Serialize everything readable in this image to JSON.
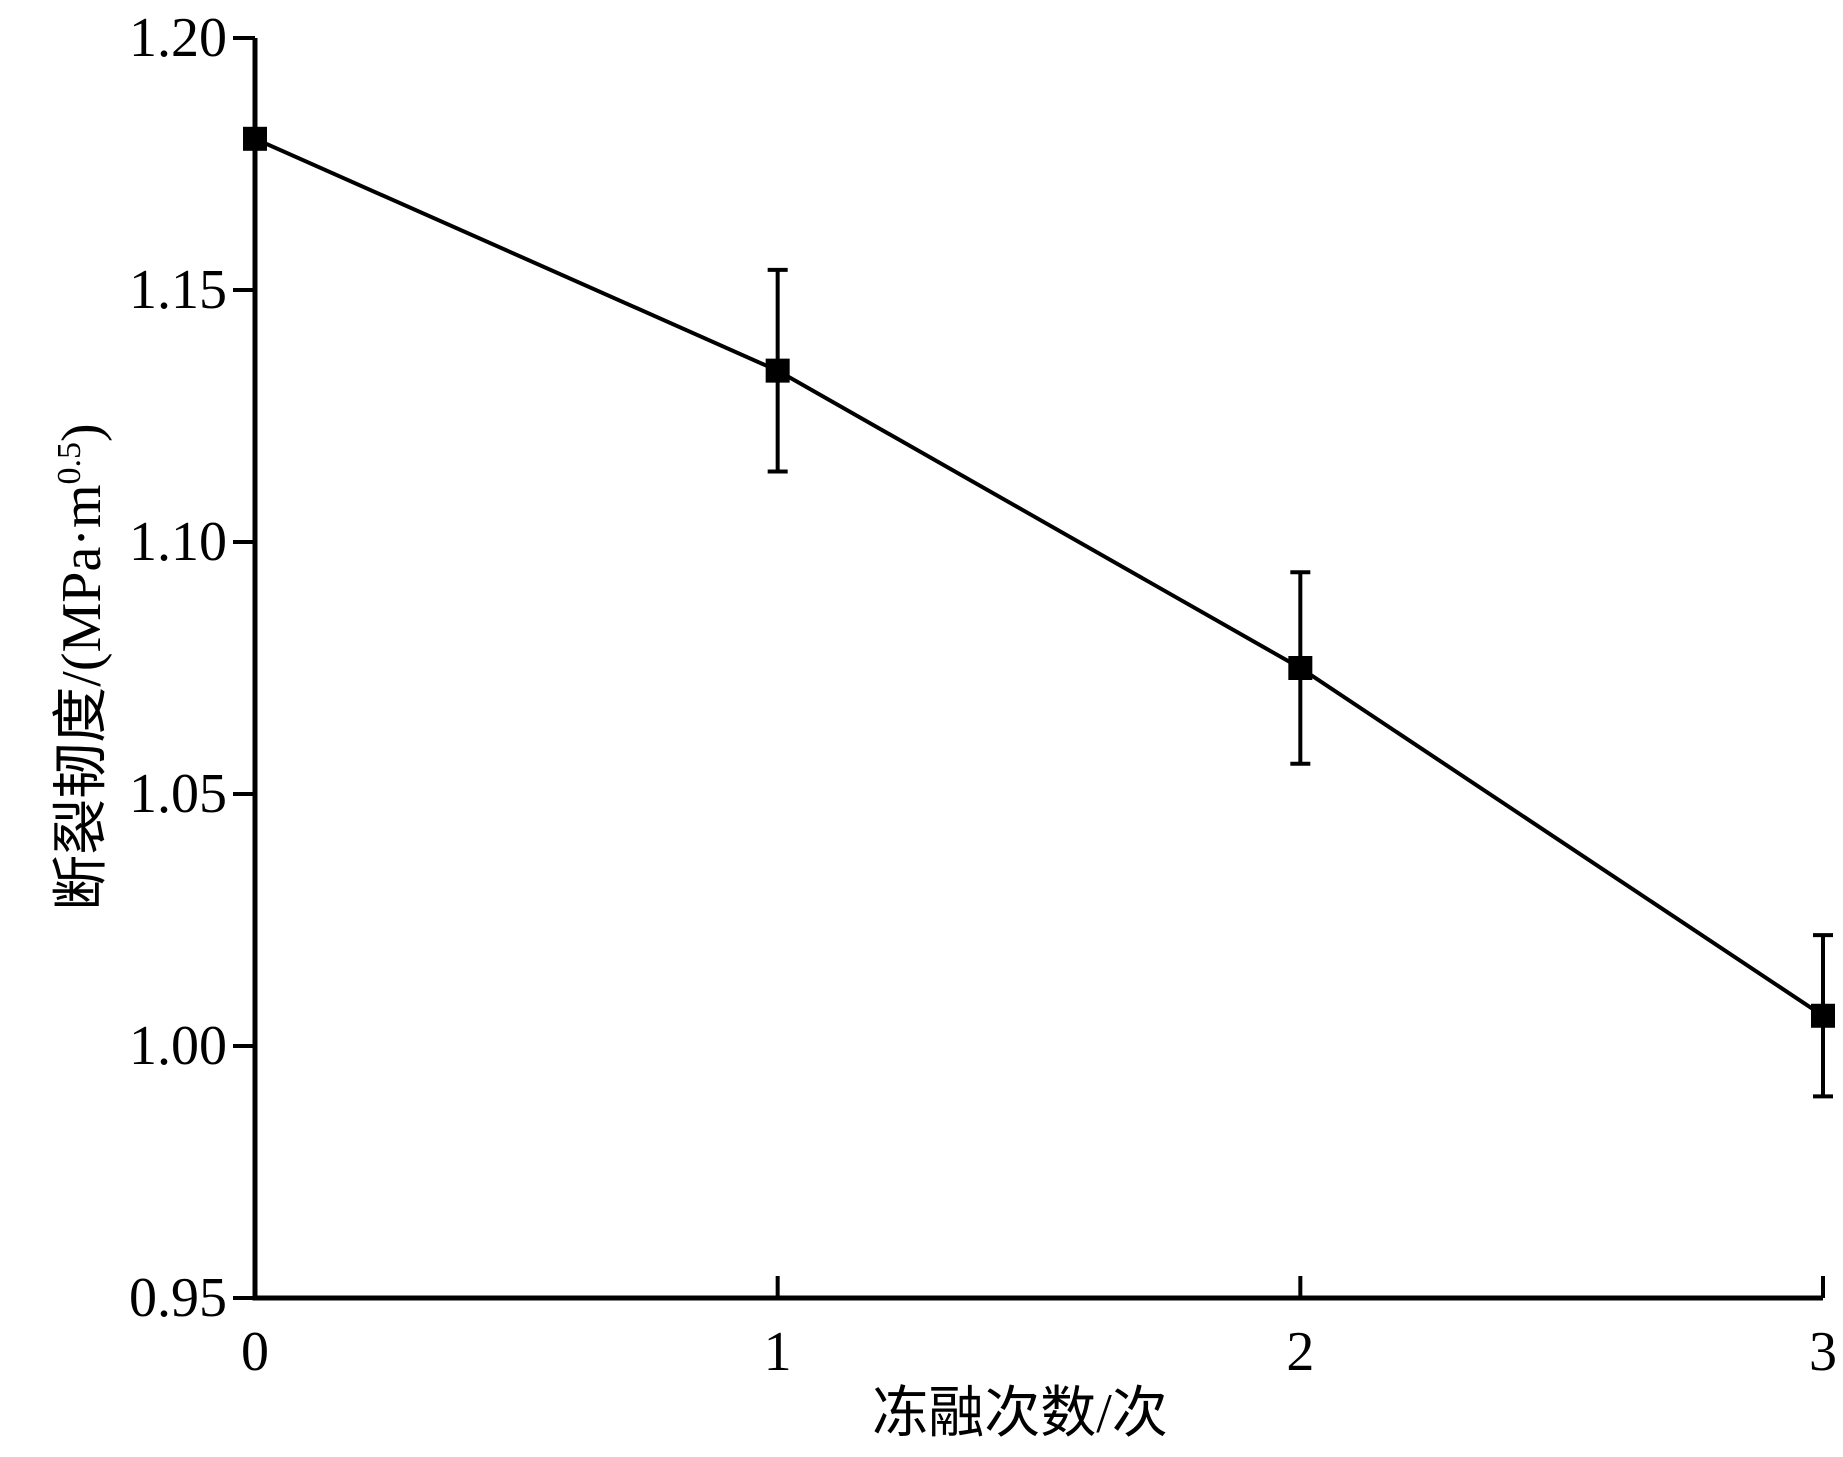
{
  "chart_data": {
    "type": "line",
    "xlabel": "冻融次数/次",
    "ylabel": {
      "text": "断裂韧度/(MPa·m",
      "superscript": "0.5",
      "suffix": ")"
    },
    "x": [
      0,
      1,
      2,
      3
    ],
    "series": [
      {
        "color": "#000000",
        "values": [
          1.18,
          1.134,
          1.075,
          1.006
        ],
        "errors": [
          null,
          0.02,
          0.019,
          0.016
        ]
      }
    ],
    "xlim": [
      0,
      3
    ],
    "xticks": [
      0,
      1,
      2,
      3
    ],
    "ylim": [
      0.95,
      1.2
    ],
    "yticks": [
      0.95,
      {
        "value": 1.0,
        "label": "1.00"
      },
      1.05,
      {
        "value": 1.1,
        "label": "1.10"
      },
      1.15,
      {
        "value": 1.2,
        "label": "1.20"
      }
    ]
  }
}
